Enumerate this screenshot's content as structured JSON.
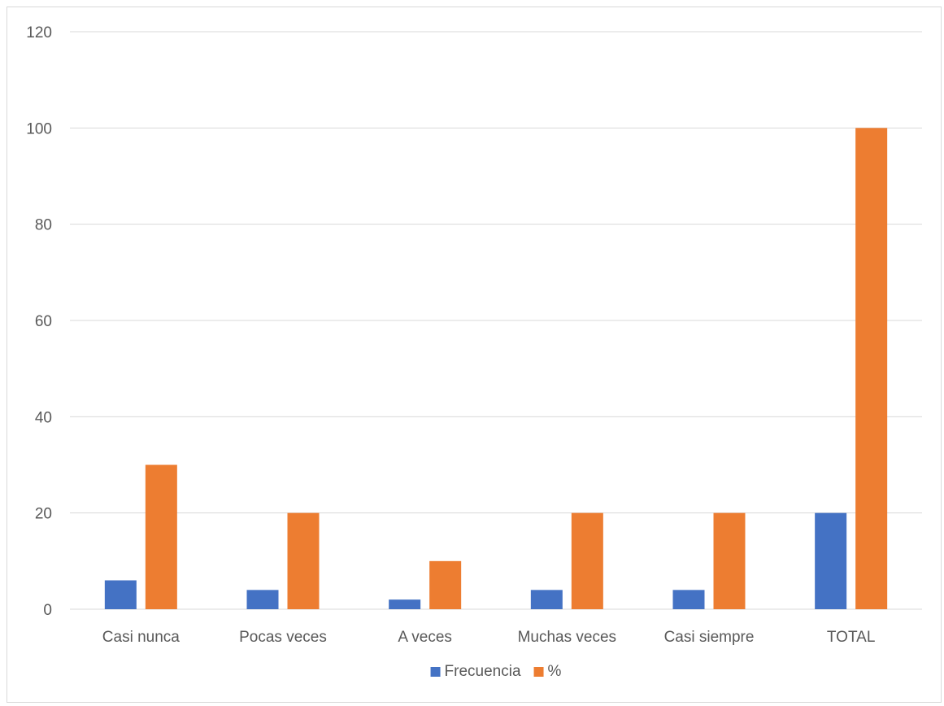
{
  "chart_data": {
    "type": "bar",
    "categories": [
      "Casi nunca",
      "Pocas veces",
      "A veces",
      "Muchas veces",
      "Casi siempre",
      "TOTAL"
    ],
    "series": [
      {
        "name": "Frecuencia",
        "values": [
          6,
          4,
          2,
          4,
          4,
          20
        ],
        "color": "#4472C4"
      },
      {
        "name": "%",
        "values": [
          30,
          20,
          10,
          20,
          20,
          100
        ],
        "color": "#ED7D31"
      }
    ],
    "title": "",
    "xlabel": "",
    "ylabel": "",
    "ylim": [
      0,
      120
    ],
    "yticks": [
      0,
      20,
      40,
      60,
      80,
      100,
      120
    ],
    "grid": true,
    "legend": "bottom-center",
    "colors": {
      "gridline": "#d9d9d9",
      "axis_text": "#595959"
    }
  }
}
